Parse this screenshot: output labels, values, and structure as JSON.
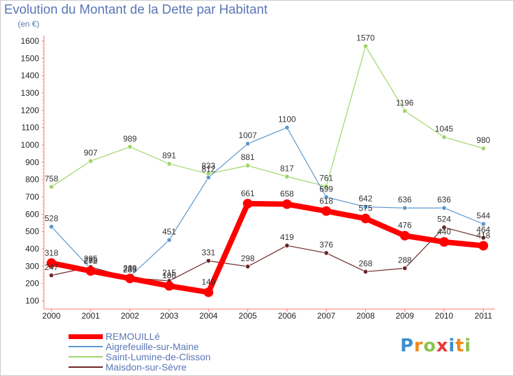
{
  "chart_data": {
    "type": "line",
    "title": "Evolution du Montant de la Dette par Habitant",
    "subtitle": "(en €)",
    "xlabel": "",
    "ylabel": "",
    "categories": [
      "2000",
      "2001",
      "2002",
      "2003",
      "2004",
      "2005",
      "2006",
      "2007",
      "2008",
      "2009",
      "2010",
      "2011"
    ],
    "ylim": [
      100,
      1600
    ],
    "yticks": [
      100,
      200,
      300,
      400,
      500,
      600,
      700,
      800,
      900,
      1000,
      1100,
      1200,
      1300,
      1400,
      1500,
      1600
    ],
    "grid": false,
    "legend_position": "bottom-left",
    "series": [
      {
        "name": "REMOUILLé",
        "values": [
          318,
          272,
          229,
          186,
          149,
          661,
          658,
          618,
          575,
          476,
          440,
          418
        ],
        "color": "#ff0000"
      },
      {
        "name": "Aigrefeuille-sur-Maine",
        "values": [
          528,
          285,
          240,
          451,
          812,
          1007,
          1100,
          699,
          642,
          636,
          636,
          544
        ],
        "color": "#5b98cc"
      },
      {
        "name": "Saint-Lumine-de-Clisson",
        "values": [
          758,
          907,
          989,
          891,
          833,
          881,
          817,
          761,
          1570,
          1196,
          1045,
          980
        ],
        "color": "#9dd667"
      },
      {
        "name": "Maisdon-sur-Sèvre",
        "values": [
          247,
          295,
          233,
          215,
          331,
          298,
          419,
          376,
          268,
          288,
          524,
          464
        ],
        "color": "#6b2424"
      }
    ]
  },
  "logo": {
    "text": "Proxiti"
  }
}
